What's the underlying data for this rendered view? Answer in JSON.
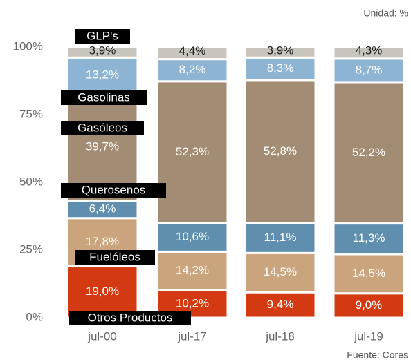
{
  "chart_data": {
    "type": "stacked_bar",
    "unit": "Unidad: %",
    "source": "Fuente: Cores",
    "categories": [
      "jul-00",
      "jul-17",
      "jul-18",
      "jul-19"
    ],
    "series": [
      {
        "name": "Otros Productos",
        "color": "#d43a12",
        "values": [
          19.0,
          10.2,
          9.4,
          9.0
        ],
        "value_labels": [
          "19,0%",
          "10,2%",
          "9,4%",
          "9,0%"
        ]
      },
      {
        "name": "Fuelóleos",
        "color": "#c9a47c",
        "values": [
          17.8,
          14.2,
          14.5,
          14.5
        ],
        "value_labels": [
          "17,8%",
          "14,2%",
          "14,5%",
          "14,5%"
        ]
      },
      {
        "name": "Querosenos",
        "color": "#5f8eaf",
        "values": [
          6.4,
          10.6,
          11.1,
          11.3
        ],
        "value_labels": [
          "6,4%",
          "10,6%",
          "11,1%",
          "11,3%"
        ]
      },
      {
        "name": "Gasóleos",
        "color": "#a28c74",
        "values": [
          39.7,
          52.3,
          52.8,
          52.2
        ],
        "value_labels": [
          "39,7%",
          "52,3%",
          "52,8%",
          "52,2%"
        ]
      },
      {
        "name": "Gasolinas",
        "color": "#8db4d2",
        "values": [
          13.2,
          8.2,
          8.3,
          8.7
        ],
        "value_labels": [
          "13,2%",
          "8,2%",
          "8,3%",
          "8,7%"
        ]
      },
      {
        "name": "GLP's",
        "color": "#c9c5bd",
        "values": [
          3.9,
          4.4,
          3.9,
          4.3
        ],
        "value_labels": [
          "3,9%",
          "4,4%",
          "3,9%",
          "4,3%"
        ]
      }
    ],
    "ylim": [
      0,
      100
    ],
    "yticks": [
      {
        "value": 0,
        "label": "0%"
      },
      {
        "value": 25,
        "label": "25%"
      },
      {
        "value": 50,
        "label": "50%"
      },
      {
        "value": 75,
        "label": "75%"
      },
      {
        "value": 100,
        "label": "100%"
      }
    ]
  }
}
